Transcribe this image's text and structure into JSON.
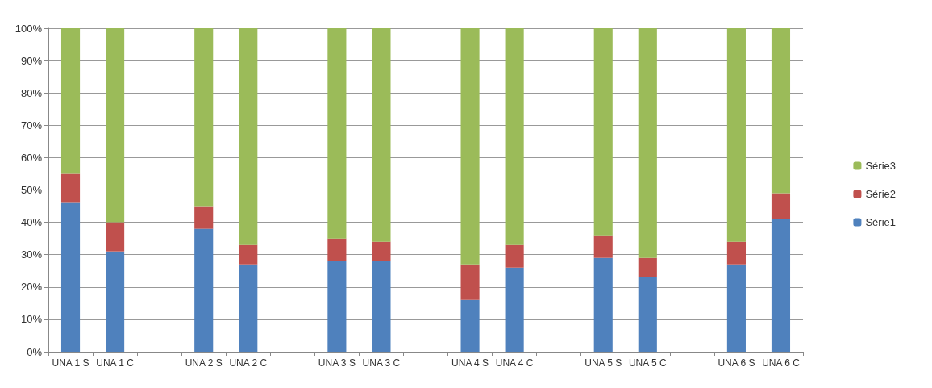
{
  "chart_data": {
    "type": "bar",
    "stacked": true,
    "categories": [
      "UNA 1 S",
      "UNA 1 C",
      null,
      "UNA 2 S",
      "UNA 2 C",
      null,
      "UNA 3 S",
      "UNA 3 C",
      null,
      "UNA 4 S",
      "UNA 4 C",
      null,
      "UNA 5 S",
      "UNA 5 C",
      null,
      "UNA 6 S",
      "UNA 6 C"
    ],
    "series": [
      {
        "name": "Série1",
        "color": "#4f81bd",
        "values": [
          46,
          31,
          null,
          38,
          27,
          null,
          28,
          28,
          null,
          16,
          26,
          null,
          29,
          23,
          null,
          27,
          41
        ]
      },
      {
        "name": "Série2",
        "color": "#c0504d",
        "values": [
          9,
          9,
          null,
          7,
          6,
          null,
          7,
          6,
          null,
          11,
          7,
          null,
          7,
          6,
          null,
          7,
          8
        ]
      },
      {
        "name": "Série3",
        "color": "#9bbb59",
        "values": [
          45,
          60,
          null,
          55,
          67,
          null,
          65,
          66,
          null,
          73,
          67,
          null,
          64,
          71,
          null,
          66,
          51
        ]
      }
    ],
    "ylim": [
      0,
      100
    ],
    "yticks": [
      {
        "value": 0,
        "label": "0%"
      },
      {
        "value": 10,
        "label": "10%"
      },
      {
        "value": 20,
        "label": "20%"
      },
      {
        "value": 30,
        "label": "30%"
      },
      {
        "value": 40,
        "label": "40%"
      },
      {
        "value": 50,
        "label": "50%"
      },
      {
        "value": 60,
        "label": "60%"
      },
      {
        "value": 70,
        "label": "70%"
      },
      {
        "value": 80,
        "label": "80%"
      },
      {
        "value": 90,
        "label": "90%"
      },
      {
        "value": 100,
        "label": "100%"
      }
    ],
    "grid": "y",
    "legend": "right"
  }
}
